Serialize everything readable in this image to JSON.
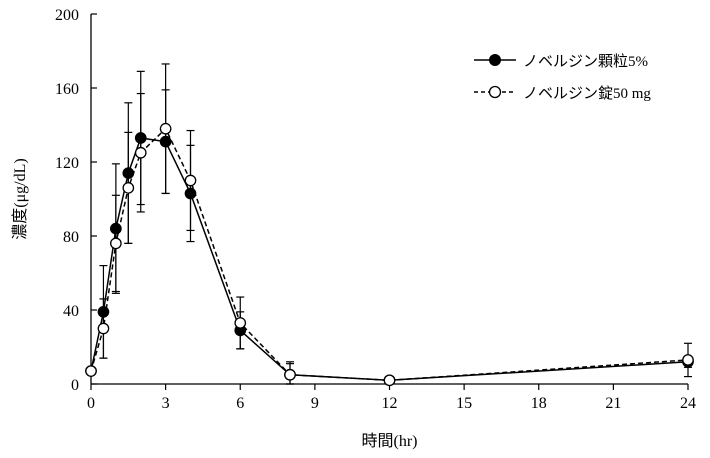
{
  "chart_data": {
    "type": "line",
    "title": "",
    "xlabel": "時間(hr)",
    "ylabel": "濃度(μg/dL)",
    "xlim": [
      0,
      24
    ],
    "ylim": [
      0,
      200
    ],
    "xticks": [
      0,
      3,
      6,
      9,
      12,
      15,
      18,
      21,
      24
    ],
    "yticks": [
      0,
      40,
      80,
      120,
      160,
      200
    ],
    "grid": false,
    "legend": "top-right",
    "x": [
      0,
      0.5,
      1,
      1.5,
      2,
      3,
      4,
      6,
      8,
      12,
      24
    ],
    "series": [
      {
        "name": "ノベルジン顆粒5%",
        "marker": "filled-circle",
        "line": "solid",
        "values": [
          7,
          39,
          84,
          114,
          133,
          131,
          103,
          29,
          5,
          2,
          12
        ],
        "errors": [
          0,
          25,
          35,
          38,
          36,
          28,
          26,
          10,
          6,
          2,
          3
        ]
      },
      {
        "name": "ノベルジン錠50 mg",
        "marker": "open-circle",
        "line": "dashed",
        "values": [
          7,
          30,
          76,
          106,
          125,
          138,
          110,
          33,
          5,
          2,
          13
        ],
        "errors": [
          0,
          16,
          26,
          30,
          32,
          35,
          27,
          14,
          7,
          2,
          9
        ]
      }
    ]
  }
}
